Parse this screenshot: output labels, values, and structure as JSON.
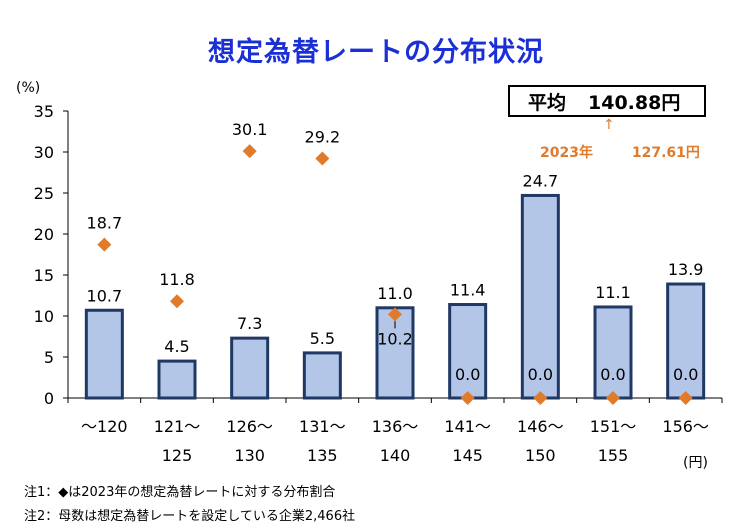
{
  "title": "想定為替レートの分布状況",
  "y_unit": "(%)",
  "x_unit": "(円)",
  "average": {
    "label": "平均",
    "value": "140.88円"
  },
  "previous_average": {
    "year": "2023年",
    "value": "127.61円"
  },
  "notes": [
    "注1：◆は2023年の想定為替レートに対する分布割合",
    "注2：母数は想定為替レートを設定している企業2,466社"
  ],
  "colors": {
    "bar_fill": "#b4c6e7",
    "bar_stroke": "#1f3864",
    "marker": "#e07b2c",
    "title": "#1a2fd6"
  },
  "chart_data": {
    "type": "bar",
    "title": "想定為替レートの分布状況",
    "ylim": [
      0,
      35
    ],
    "yticks": [
      0,
      5,
      10,
      15,
      20,
      25,
      30,
      35
    ],
    "grid": false,
    "category_lines": [
      [
        "～120",
        ""
      ],
      [
        "121～",
        "125"
      ],
      [
        "126～",
        "130"
      ],
      [
        "131～",
        "135"
      ],
      [
        "136～",
        "140"
      ],
      [
        "141～",
        "145"
      ],
      [
        "146～",
        "150"
      ],
      [
        "151～",
        "155"
      ],
      [
        "156～",
        ""
      ]
    ],
    "series": [
      {
        "kind": "bar",
        "values": [
          10.7,
          4.5,
          7.3,
          5.5,
          11.0,
          11.4,
          24.7,
          11.1,
          13.9
        ],
        "labels": [
          "10.7",
          "4.5",
          "7.3",
          "5.5",
          "11.0",
          "11.4",
          "24.7",
          "11.1",
          "13.9"
        ]
      },
      {
        "kind": "marker",
        "values": [
          18.7,
          11.8,
          30.1,
          29.2,
          10.2,
          0.0,
          0.0,
          0.0,
          0.0
        ],
        "labels": [
          "18.7",
          "11.8",
          "30.1",
          "29.2",
          "10.2",
          "0.0",
          "0.0",
          "0.0",
          "0.0"
        ]
      }
    ]
  }
}
